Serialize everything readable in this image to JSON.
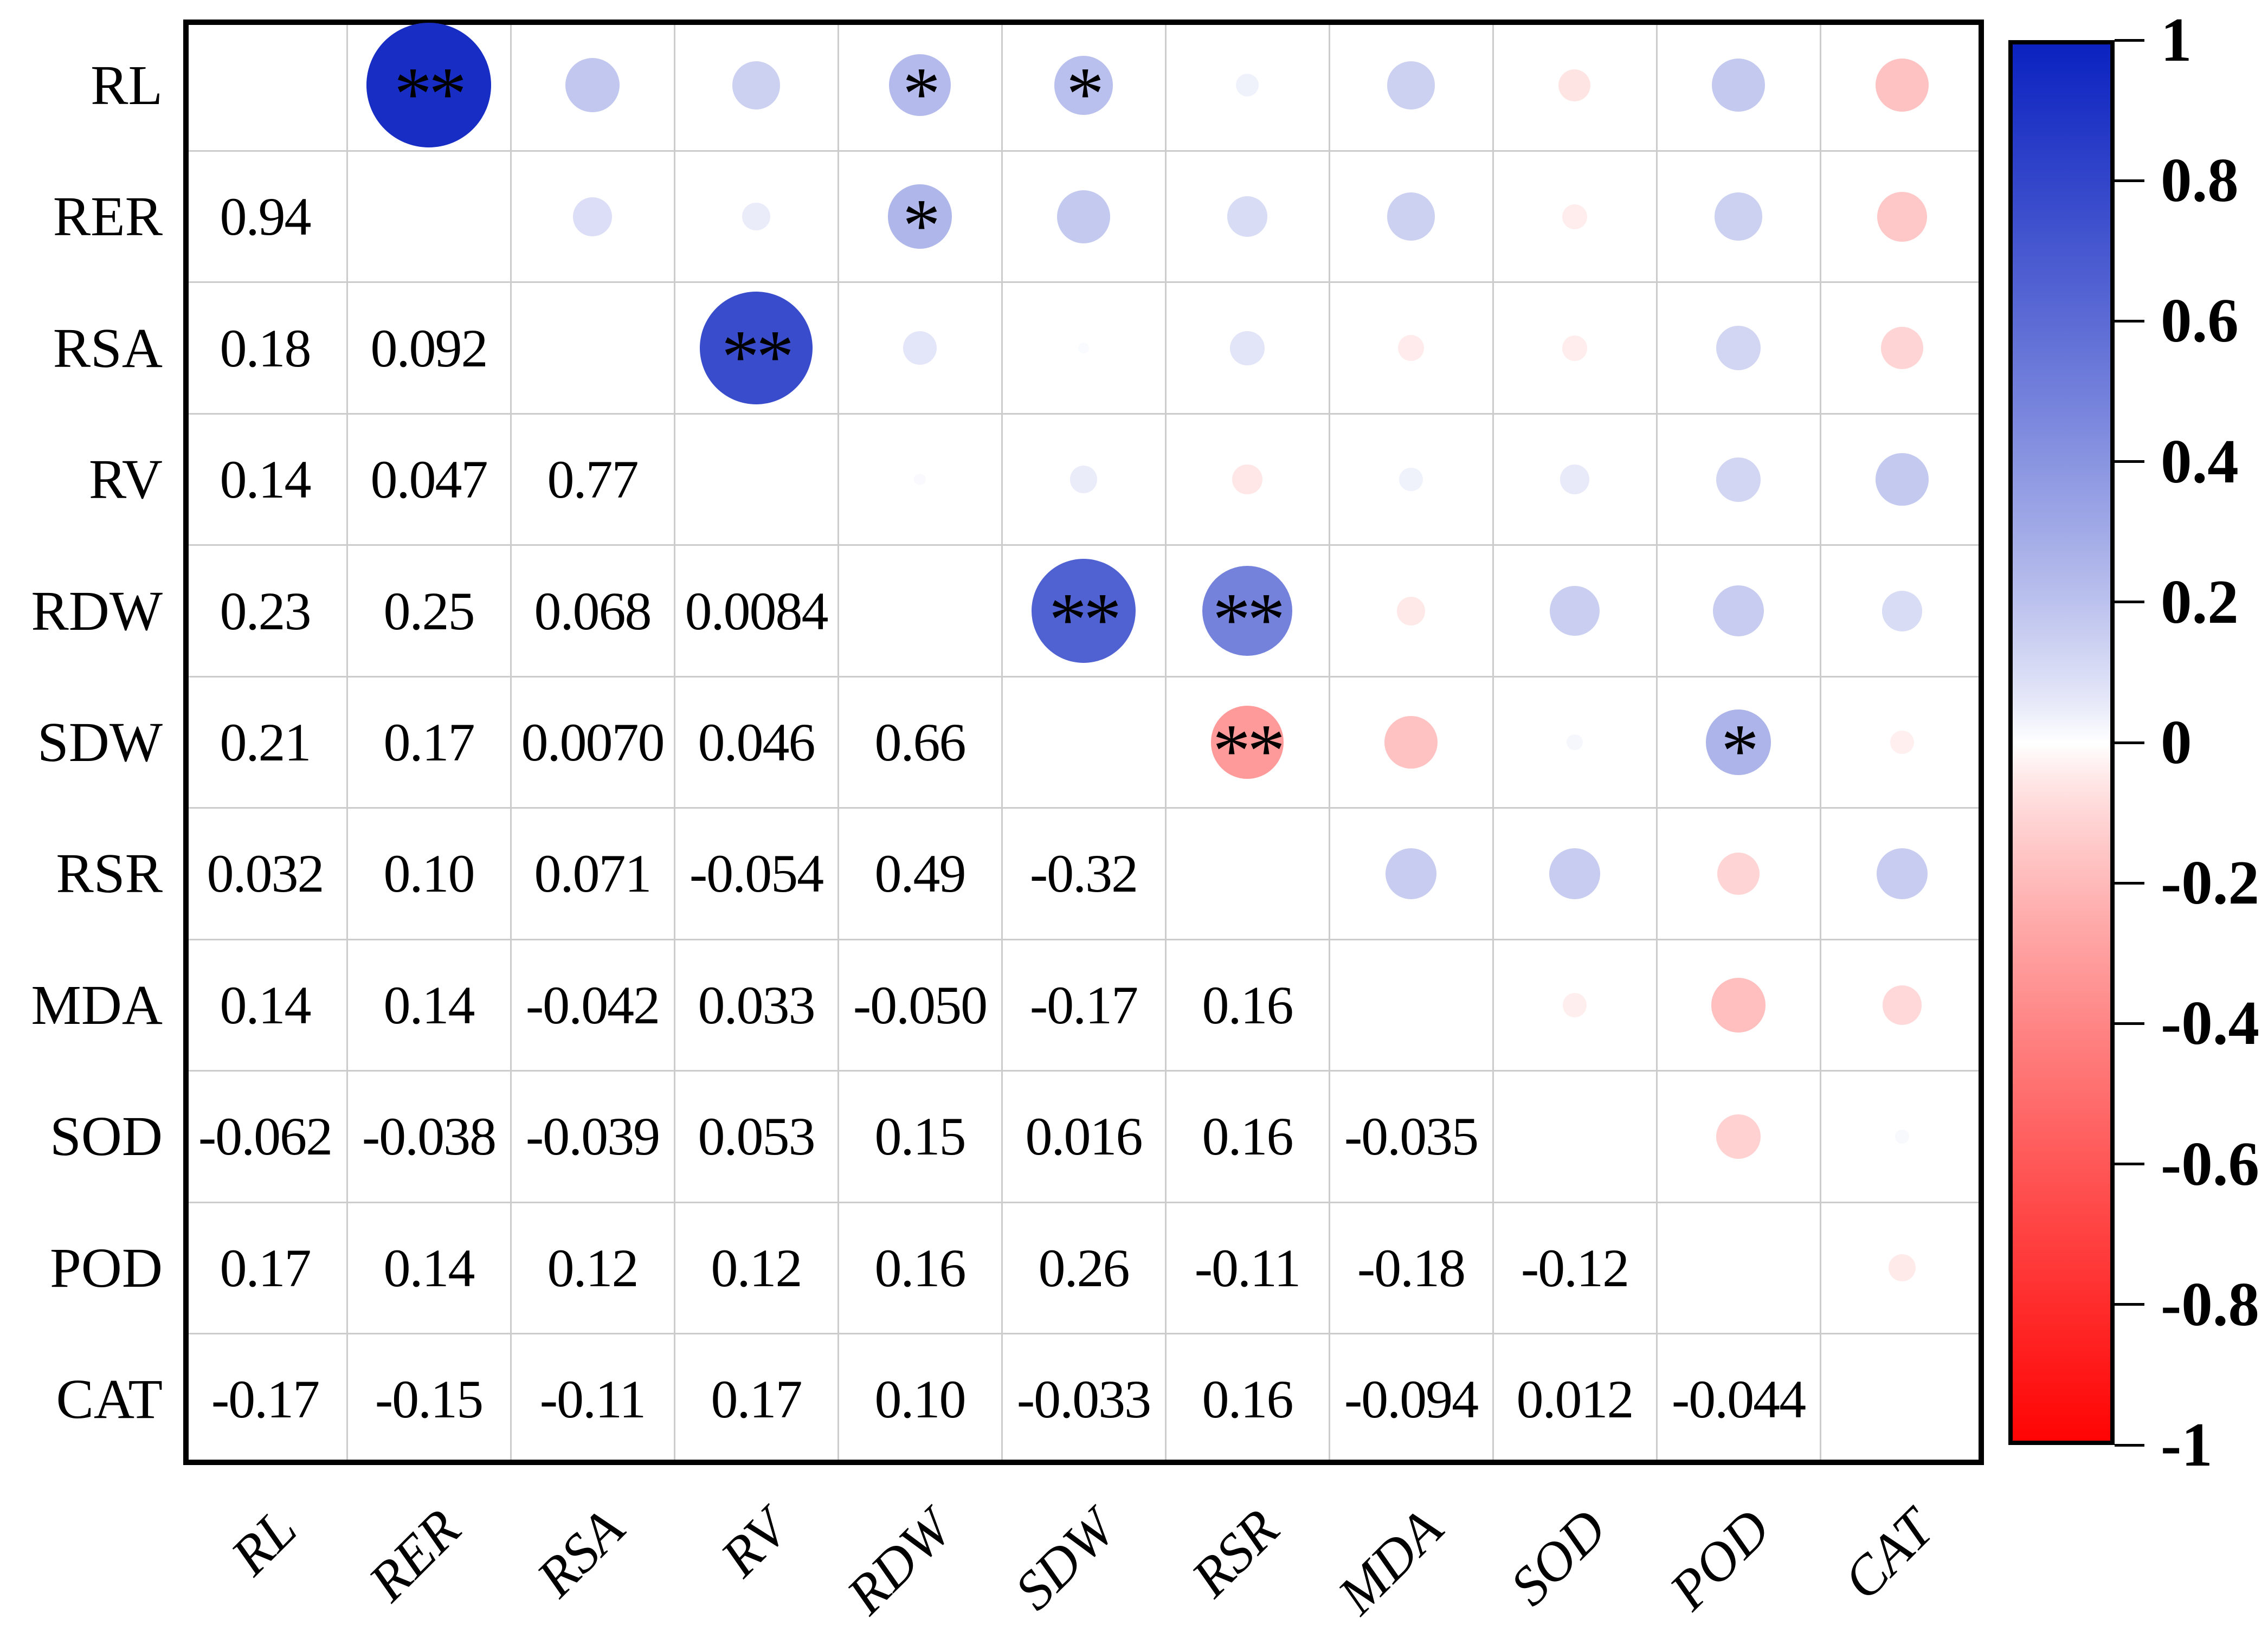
{
  "chart_data": {
    "type": "correlation-matrix",
    "title": "",
    "variables": [
      "RL",
      "RER",
      "RSA",
      "RV",
      "RDW",
      "SDW",
      "RSR",
      "MDA",
      "SOD",
      "POD",
      "CAT"
    ],
    "layout_hint": {
      "lower_triangle": "correlation coefficient text",
      "upper_triangle": "circles sized and colored by correlation, with significance stars",
      "diagonal": "blank",
      "grid": "on",
      "colorbar_position": "right"
    },
    "pairs": [
      {
        "a": "RL",
        "b": "RER",
        "value": "0.94",
        "stars": "**"
      },
      {
        "a": "RL",
        "b": "RSA",
        "value": "0.18",
        "stars": ""
      },
      {
        "a": "RL",
        "b": "RV",
        "value": "0.14",
        "stars": ""
      },
      {
        "a": "RL",
        "b": "RDW",
        "value": "0.23",
        "stars": "*"
      },
      {
        "a": "RL",
        "b": "SDW",
        "value": "0.21",
        "stars": "*"
      },
      {
        "a": "RL",
        "b": "RSR",
        "value": "0.032",
        "stars": ""
      },
      {
        "a": "RL",
        "b": "MDA",
        "value": "0.14",
        "stars": ""
      },
      {
        "a": "RL",
        "b": "SOD",
        "value": "-0.062",
        "stars": ""
      },
      {
        "a": "RL",
        "b": "POD",
        "value": "0.17",
        "stars": ""
      },
      {
        "a": "RL",
        "b": "CAT",
        "value": "-0.17",
        "stars": ""
      },
      {
        "a": "RER",
        "b": "RSA",
        "value": "0.092",
        "stars": ""
      },
      {
        "a": "RER",
        "b": "RV",
        "value": "0.047",
        "stars": ""
      },
      {
        "a": "RER",
        "b": "RDW",
        "value": "0.25",
        "stars": "*"
      },
      {
        "a": "RER",
        "b": "SDW",
        "value": "0.17",
        "stars": ""
      },
      {
        "a": "RER",
        "b": "RSR",
        "value": "0.10",
        "stars": ""
      },
      {
        "a": "RER",
        "b": "MDA",
        "value": "0.14",
        "stars": ""
      },
      {
        "a": "RER",
        "b": "SOD",
        "value": "-0.038",
        "stars": ""
      },
      {
        "a": "RER",
        "b": "POD",
        "value": "0.14",
        "stars": ""
      },
      {
        "a": "RER",
        "b": "CAT",
        "value": "-0.15",
        "stars": ""
      },
      {
        "a": "RSA",
        "b": "RV",
        "value": "0.77",
        "stars": "**"
      },
      {
        "a": "RSA",
        "b": "RDW",
        "value": "0.068",
        "stars": ""
      },
      {
        "a": "RSA",
        "b": "SDW",
        "value": "0.0070",
        "stars": ""
      },
      {
        "a": "RSA",
        "b": "RSR",
        "value": "0.071",
        "stars": ""
      },
      {
        "a": "RSA",
        "b": "MDA",
        "value": "-0.042",
        "stars": ""
      },
      {
        "a": "RSA",
        "b": "SOD",
        "value": "-0.039",
        "stars": ""
      },
      {
        "a": "RSA",
        "b": "POD",
        "value": "0.12",
        "stars": ""
      },
      {
        "a": "RSA",
        "b": "CAT",
        "value": "-0.11",
        "stars": ""
      },
      {
        "a": "RV",
        "b": "RDW",
        "value": "0.0084",
        "stars": ""
      },
      {
        "a": "RV",
        "b": "SDW",
        "value": "0.046",
        "stars": ""
      },
      {
        "a": "RV",
        "b": "RSR",
        "value": "-0.054",
        "stars": ""
      },
      {
        "a": "RV",
        "b": "MDA",
        "value": "0.033",
        "stars": ""
      },
      {
        "a": "RV",
        "b": "SOD",
        "value": "0.053",
        "stars": ""
      },
      {
        "a": "RV",
        "b": "POD",
        "value": "0.12",
        "stars": ""
      },
      {
        "a": "RV",
        "b": "CAT",
        "value": "0.17",
        "stars": ""
      },
      {
        "a": "RDW",
        "b": "SDW",
        "value": "0.66",
        "stars": "**"
      },
      {
        "a": "RDW",
        "b": "RSR",
        "value": "0.49",
        "stars": "**"
      },
      {
        "a": "RDW",
        "b": "MDA",
        "value": "-0.050",
        "stars": ""
      },
      {
        "a": "RDW",
        "b": "SOD",
        "value": "0.15",
        "stars": ""
      },
      {
        "a": "RDW",
        "b": "POD",
        "value": "0.16",
        "stars": ""
      },
      {
        "a": "RDW",
        "b": "CAT",
        "value": "0.10",
        "stars": ""
      },
      {
        "a": "SDW",
        "b": "RSR",
        "value": "-0.32",
        "stars": "**"
      },
      {
        "a": "SDW",
        "b": "MDA",
        "value": "-0.17",
        "stars": ""
      },
      {
        "a": "SDW",
        "b": "SOD",
        "value": "0.016",
        "stars": ""
      },
      {
        "a": "SDW",
        "b": "POD",
        "value": "0.26",
        "stars": "*"
      },
      {
        "a": "SDW",
        "b": "CAT",
        "value": "-0.033",
        "stars": ""
      },
      {
        "a": "RSR",
        "b": "MDA",
        "value": "0.16",
        "stars": ""
      },
      {
        "a": "RSR",
        "b": "SOD",
        "value": "0.16",
        "stars": ""
      },
      {
        "a": "RSR",
        "b": "POD",
        "value": "-0.11",
        "stars": ""
      },
      {
        "a": "RSR",
        "b": "CAT",
        "value": "0.16",
        "stars": ""
      },
      {
        "a": "MDA",
        "b": "SOD",
        "value": "-0.035",
        "stars": ""
      },
      {
        "a": "MDA",
        "b": "POD",
        "value": "-0.18",
        "stars": ""
      },
      {
        "a": "MDA",
        "b": "CAT",
        "value": "-0.094",
        "stars": ""
      },
      {
        "a": "SOD",
        "b": "POD",
        "value": "-0.12",
        "stars": ""
      },
      {
        "a": "SOD",
        "b": "CAT",
        "value": "0.012",
        "stars": ""
      },
      {
        "a": "POD",
        "b": "CAT",
        "value": "-0.044",
        "stars": ""
      }
    ],
    "colorbar": {
      "range": [
        -1,
        1
      ],
      "tick_labels": [
        "1",
        "0.8",
        "0.6",
        "0.4",
        "0.2",
        "0",
        "-0.2",
        "-0.4",
        "-0.6",
        "-0.8",
        "-1"
      ],
      "tick_values": [
        1,
        0.8,
        0.6,
        0.4,
        0.2,
        0,
        -0.2,
        -0.4,
        -0.6,
        -0.8,
        -1
      ],
      "max_color": "#0b22c0",
      "mid_color": "#ffffff",
      "min_color": "#ff0404"
    },
    "colors": {
      "grid_line": "#cccccc",
      "border": "#000000",
      "text": "#000000"
    }
  }
}
